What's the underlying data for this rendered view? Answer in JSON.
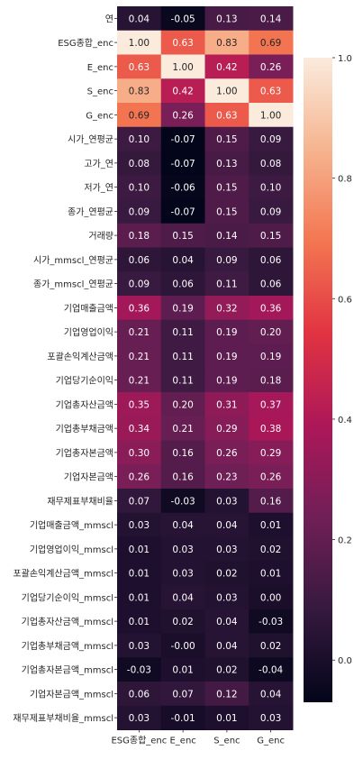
{
  "chart_data": {
    "type": "heatmap",
    "title": "",
    "xlabel": "",
    "ylabel": "",
    "columns": [
      "ESG종합_enc",
      "E_enc",
      "S_enc",
      "G_enc"
    ],
    "rows": [
      "연",
      "ESG종합_enc",
      "E_enc",
      "S_enc",
      "G_enc",
      "시가_연평균",
      "고가_연",
      "저가_연",
      "종가_연평균",
      "거래량",
      "시가_mmscl_연평균",
      "종가_mmscl_연평균",
      "기업매출금액",
      "기업영업이익",
      "포괄손익계산금액",
      "기업당기순이익",
      "기업총자산금액",
      "기업총부채금액",
      "기업총자본금액",
      "기업자본금액",
      "재무제표부채비율",
      "기업매출금액_mmscl",
      "기업영업이익_mmscl",
      "포괄손익계산금액_mmscl",
      "기업당기순이익_mmscl",
      "기업총자산금액_mmscl",
      "기업총부채금액_mmscl",
      "기업총자본금액_mmscl",
      "기업자본금액_mmscl",
      "재무제표부채비율_mmscl"
    ],
    "values": [
      [
        0.04,
        -0.05,
        0.13,
        0.14
      ],
      [
        1.0,
        0.63,
        0.83,
        0.69
      ],
      [
        0.63,
        1.0,
        0.42,
        0.26
      ],
      [
        0.83,
        0.42,
        1.0,
        0.63
      ],
      [
        0.69,
        0.26,
        0.63,
        1.0
      ],
      [
        0.1,
        -0.07,
        0.15,
        0.09
      ],
      [
        0.08,
        -0.07,
        0.13,
        0.08
      ],
      [
        0.1,
        -0.06,
        0.15,
        0.1
      ],
      [
        0.09,
        -0.07,
        0.15,
        0.09
      ],
      [
        0.18,
        0.15,
        0.14,
        0.15
      ],
      [
        0.06,
        0.04,
        0.09,
        0.06
      ],
      [
        0.09,
        0.06,
        0.11,
        0.06
      ],
      [
        0.36,
        0.19,
        0.32,
        0.36
      ],
      [
        0.21,
        0.11,
        0.19,
        0.2
      ],
      [
        0.21,
        0.11,
        0.19,
        0.19
      ],
      [
        0.21,
        0.11,
        0.19,
        0.18
      ],
      [
        0.35,
        0.2,
        0.31,
        0.37
      ],
      [
        0.34,
        0.21,
        0.29,
        0.38
      ],
      [
        0.3,
        0.16,
        0.26,
        0.29
      ],
      [
        0.26,
        0.16,
        0.23,
        0.26
      ],
      [
        0.07,
        -0.03,
        0.03,
        0.16
      ],
      [
        0.03,
        0.04,
        0.04,
        0.01
      ],
      [
        0.01,
        0.03,
        0.03,
        0.02
      ],
      [
        0.01,
        0.03,
        0.02,
        0.01
      ],
      [
        0.01,
        0.04,
        0.03,
        0.0
      ],
      [
        0.01,
        0.02,
        0.04,
        -0.03
      ],
      [
        0.03,
        -0.0,
        0.04,
        0.02
      ],
      [
        -0.03,
        0.01,
        0.02,
        -0.04
      ],
      [
        0.06,
        0.07,
        0.12,
        0.04
      ],
      [
        0.03,
        -0.01,
        0.01,
        0.03
      ]
    ],
    "value_labels": [
      [
        "0.04",
        "-0.05",
        "0.13",
        "0.14"
      ],
      [
        "1.00",
        "0.63",
        "0.83",
        "0.69"
      ],
      [
        "0.63",
        "1.00",
        "0.42",
        "0.26"
      ],
      [
        "0.83",
        "0.42",
        "1.00",
        "0.63"
      ],
      [
        "0.69",
        "0.26",
        "0.63",
        "1.00"
      ],
      [
        "0.10",
        "-0.07",
        "0.15",
        "0.09"
      ],
      [
        "0.08",
        "-0.07",
        "0.13",
        "0.08"
      ],
      [
        "0.10",
        "-0.06",
        "0.15",
        "0.10"
      ],
      [
        "0.09",
        "-0.07",
        "0.15",
        "0.09"
      ],
      [
        "0.18",
        "0.15",
        "0.14",
        "0.15"
      ],
      [
        "0.06",
        "0.04",
        "0.09",
        "0.06"
      ],
      [
        "0.09",
        "0.06",
        "0.11",
        "0.06"
      ],
      [
        "0.36",
        "0.19",
        "0.32",
        "0.36"
      ],
      [
        "0.21",
        "0.11",
        "0.19",
        "0.20"
      ],
      [
        "0.21",
        "0.11",
        "0.19",
        "0.19"
      ],
      [
        "0.21",
        "0.11",
        "0.19",
        "0.18"
      ],
      [
        "0.35",
        "0.20",
        "0.31",
        "0.37"
      ],
      [
        "0.34",
        "0.21",
        "0.29",
        "0.38"
      ],
      [
        "0.30",
        "0.16",
        "0.26",
        "0.29"
      ],
      [
        "0.26",
        "0.16",
        "0.23",
        "0.26"
      ],
      [
        "0.07",
        "-0.03",
        "0.03",
        "0.16"
      ],
      [
        "0.03",
        "0.04",
        "0.04",
        "0.01"
      ],
      [
        "0.01",
        "0.03",
        "0.03",
        "0.02"
      ],
      [
        "0.01",
        "0.03",
        "0.02",
        "0.01"
      ],
      [
        "0.01",
        "0.04",
        "0.03",
        "0.00"
      ],
      [
        "0.01",
        "0.02",
        "0.04",
        "-0.03"
      ],
      [
        "0.03",
        "-0.00",
        "0.04",
        "0.02"
      ],
      [
        "-0.03",
        "0.01",
        "0.02",
        "-0.04"
      ],
      [
        "0.06",
        "0.07",
        "0.12",
        "0.04"
      ],
      [
        "0.03",
        "-0.01",
        "0.01",
        "0.03"
      ]
    ],
    "colorbar": {
      "range": [
        -0.07,
        1.0
      ],
      "ticks": [
        0.0,
        0.2,
        0.4,
        0.6,
        0.8,
        1.0
      ],
      "tick_labels": [
        "0.0",
        "0.2",
        "0.4",
        "0.6",
        "0.8",
        "1.0"
      ],
      "colormap": "rocket",
      "stops": [
        "#03051a",
        "#35193e",
        "#701f57",
        "#ad1759",
        "#e13342",
        "#f37651",
        "#f6b48f",
        "#faebdd"
      ]
    },
    "grid": false,
    "legend": "colorbar-right"
  }
}
